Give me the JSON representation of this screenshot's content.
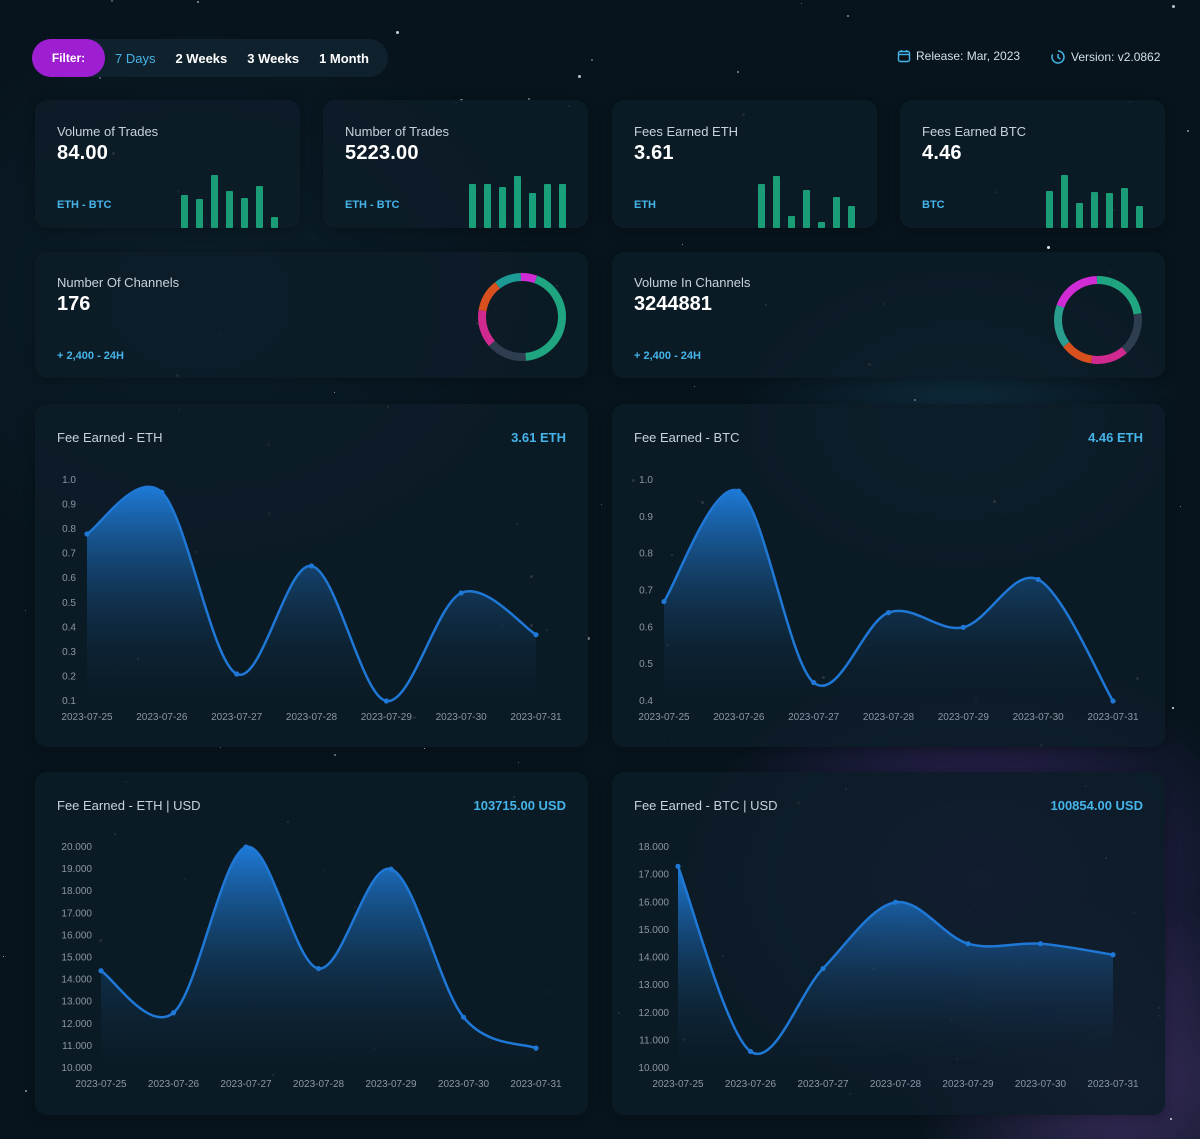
{
  "filter": {
    "label": "Filter:",
    "options": [
      "7 Days",
      "2 Weeks",
      "3 Weeks",
      "1 Month"
    ],
    "active": "7 Days"
  },
  "header": {
    "release": "Release: Mar, 2023",
    "version": "Version: v2.0862"
  },
  "stats": [
    {
      "label": "Volume of Trades",
      "value": "84.00",
      "pair": "ETH - BTC",
      "bars": [
        0.55,
        0.48,
        0.88,
        0.62,
        0.5,
        0.7,
        0.18
      ],
      "colors": [
        "#1a9c76",
        "#1a9c76",
        "#1a9c76",
        "#1a9c76",
        "#1a9c76",
        "#1a9c76",
        "#1a9c76"
      ]
    },
    {
      "label": "Number of Trades",
      "value": "5223.00",
      "pair": "ETH - BTC",
      "bars": [
        0.74,
        0.74,
        0.68,
        0.86,
        0.58,
        0.74,
        0.74
      ],
      "colors": [
        "#19a07a",
        "#19a07a",
        "#19a07a",
        "#19a07a",
        "#19a07a",
        "#19a07a",
        "#19a07a"
      ]
    },
    {
      "label": "Fees Earned ETH",
      "value": "3.61",
      "pair": "ETH",
      "bars": [
        0.74,
        0.86,
        0.2,
        0.64,
        0.1,
        0.52,
        0.36
      ],
      "colors": [
        "#1a9c76",
        "#1a9c76",
        "#1a9c76",
        "#1a9c76",
        "#1a9c76",
        "#1a9c76",
        "#1a9c76"
      ]
    },
    {
      "label": "Fees Earned BTC",
      "value": "4.46",
      "pair": "BTC",
      "bars": [
        0.62,
        0.88,
        0.42,
        0.6,
        0.58,
        0.66,
        0.36
      ],
      "colors": [
        "#1a9c76",
        "#1a9c76",
        "#1a9c76",
        "#1a9c76",
        "#1a9c76",
        "#1a9c76",
        "#1a9c76"
      ]
    }
  ],
  "channels": [
    {
      "label": "Number Of Channels",
      "value": "176",
      "delta": "+ 2,400 - 24H",
      "segments": [
        {
          "color": "#1fa57f",
          "share": 0.43
        },
        {
          "color": "#2e3d50",
          "share": 0.15
        },
        {
          "color": "#d0298f",
          "share": 0.14
        },
        {
          "color": "#d9501f",
          "share": 0.12
        },
        {
          "color": "#1c9a95",
          "share": 0.1
        },
        {
          "color": "#d12bd6",
          "share": 0.06
        }
      ]
    },
    {
      "label": "Volume In Channels",
      "value": "3244881",
      "delta": "+ 2,400 - 24H",
      "segments": [
        {
          "color": "#1fa57f",
          "share": 0.17
        },
        {
          "color": "#2e3d50",
          "share": 0.16
        },
        {
          "color": "#d0298f",
          "share": 0.14
        },
        {
          "color": "#d9501f",
          "share": 0.12
        },
        {
          "color": "#2a9d8f",
          "share": 0.16
        },
        {
          "color": "#d12bd6",
          "share": 0.19
        },
        {
          "color": "#1fa57f",
          "share": 0.06
        }
      ]
    }
  ],
  "charts": [
    {
      "title": "Fee Earned - ETH",
      "total": "3.61 ETH"
    },
    {
      "title": "Fee Earned - BTC",
      "total": "4.46 ETH"
    },
    {
      "title": "Fee Earned - ETH | USD",
      "total": "103715.00 USD"
    },
    {
      "title": "Fee Earned - BTC | USD",
      "total": "100854.00 USD"
    }
  ],
  "chart_data": [
    {
      "type": "area",
      "title": "Fee Earned - ETH",
      "x": [
        "2023-07-25",
        "2023-07-26",
        "2023-07-27",
        "2023-07-28",
        "2023-07-29",
        "2023-07-30",
        "2023-07-31"
      ],
      "y": [
        0.78,
        0.95,
        0.21,
        0.65,
        0.1,
        0.54,
        0.37
      ],
      "yticks": [
        "0.1",
        "0.2",
        "0.3",
        "0.4",
        "0.5",
        "0.6",
        "0.7",
        "0.8",
        "0.9",
        "1.0"
      ],
      "ylim": [
        0.1,
        1.0
      ]
    },
    {
      "type": "area",
      "title": "Fee Earned - BTC",
      "x": [
        "2023-07-25",
        "2023-07-26",
        "2023-07-27",
        "2023-07-28",
        "2023-07-29",
        "2023-07-30",
        "2023-07-31"
      ],
      "y": [
        0.67,
        0.97,
        0.45,
        0.64,
        0.6,
        0.73,
        0.4
      ],
      "yticks": [
        "0.4",
        "0.5",
        "0.6",
        "0.7",
        "0.8",
        "0.9",
        "1.0"
      ],
      "ylim": [
        0.4,
        1.0
      ]
    },
    {
      "type": "area",
      "title": "Fee Earned - ETH | USD",
      "x": [
        "2023-07-25",
        "2023-07-26",
        "2023-07-27",
        "2023-07-28",
        "2023-07-29",
        "2023-07-30",
        "2023-07-31"
      ],
      "y": [
        14.4,
        12.5,
        20.0,
        14.5,
        19.0,
        12.3,
        10.9
      ],
      "yticks": [
        "10.000",
        "11.000",
        "12.000",
        "13.000",
        "14.000",
        "15.000",
        "16.000",
        "17.000",
        "18.000",
        "19.000",
        "20.000"
      ],
      "ylim": [
        10,
        20
      ]
    },
    {
      "type": "area",
      "title": "Fee Earned - BTC | USD",
      "x": [
        "2023-07-25",
        "2023-07-26",
        "2023-07-27",
        "2023-07-28",
        "2023-07-29",
        "2023-07-30",
        "2023-07-31"
      ],
      "y": [
        17.3,
        10.6,
        13.6,
        16.0,
        14.5,
        14.5,
        14.1
      ],
      "yticks": [
        "10.000",
        "11.000",
        "12.000",
        "13.000",
        "14.000",
        "15.000",
        "16.000",
        "17.000",
        "18.000"
      ],
      "ylim": [
        10,
        18
      ]
    }
  ]
}
